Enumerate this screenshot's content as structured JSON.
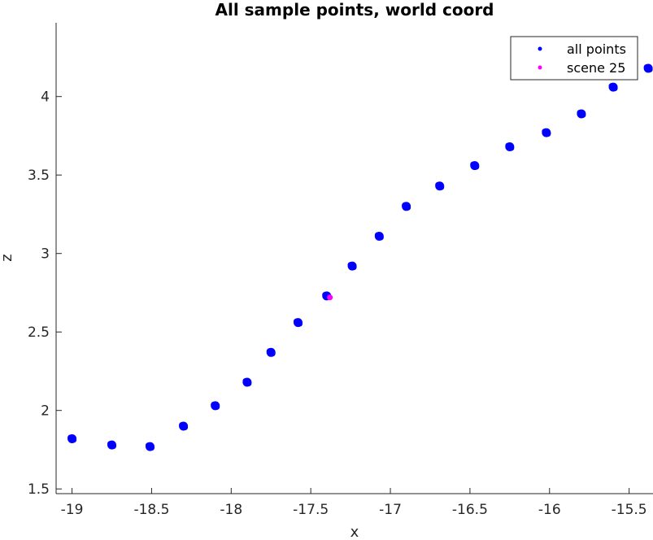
{
  "chart_data": {
    "type": "scatter",
    "title": "All sample points, world coord",
    "xlabel": "x",
    "ylabel": "z",
    "xlim": [
      -19.1,
      -15.35
    ],
    "ylim": [
      1.47,
      4.47
    ],
    "xticks": [
      -19,
      -18.5,
      -18,
      -17.5,
      -17,
      -16.5,
      -16,
      -15.5
    ],
    "xtick_labels": [
      "-19",
      "-18.5",
      "-18",
      "-17.5",
      "-17",
      "-16.5",
      "-16",
      "-15.5"
    ],
    "yticks": [
      1.5,
      2,
      2.5,
      3,
      3.5,
      4
    ],
    "ytick_labels": [
      "1.5",
      "2",
      "2.5",
      "3",
      "3.5",
      "4"
    ],
    "grid": false,
    "legend_position": "top-right",
    "series": [
      {
        "name": "all points",
        "color": "#0000ff",
        "marker": "dot",
        "points": [
          {
            "x": -19.0,
            "y": 1.82
          },
          {
            "x": -18.75,
            "y": 1.78
          },
          {
            "x": -18.51,
            "y": 1.77
          },
          {
            "x": -18.3,
            "y": 1.9
          },
          {
            "x": -18.1,
            "y": 2.03
          },
          {
            "x": -17.9,
            "y": 2.18
          },
          {
            "x": -17.75,
            "y": 2.37
          },
          {
            "x": -17.58,
            "y": 2.56
          },
          {
            "x": -17.4,
            "y": 2.73
          },
          {
            "x": -17.24,
            "y": 2.92
          },
          {
            "x": -17.07,
            "y": 3.11
          },
          {
            "x": -16.9,
            "y": 3.3
          },
          {
            "x": -16.69,
            "y": 3.43
          },
          {
            "x": -16.47,
            "y": 3.56
          },
          {
            "x": -16.25,
            "y": 3.68
          },
          {
            "x": -16.02,
            "y": 3.77
          },
          {
            "x": -15.8,
            "y": 3.89
          },
          {
            "x": -15.6,
            "y": 4.06
          },
          {
            "x": -15.38,
            "y": 4.18
          }
        ]
      },
      {
        "name": "scene 25",
        "color": "#ff00ff",
        "marker": "dot",
        "points": [
          {
            "x": -17.38,
            "y": 2.72
          }
        ]
      }
    ]
  }
}
